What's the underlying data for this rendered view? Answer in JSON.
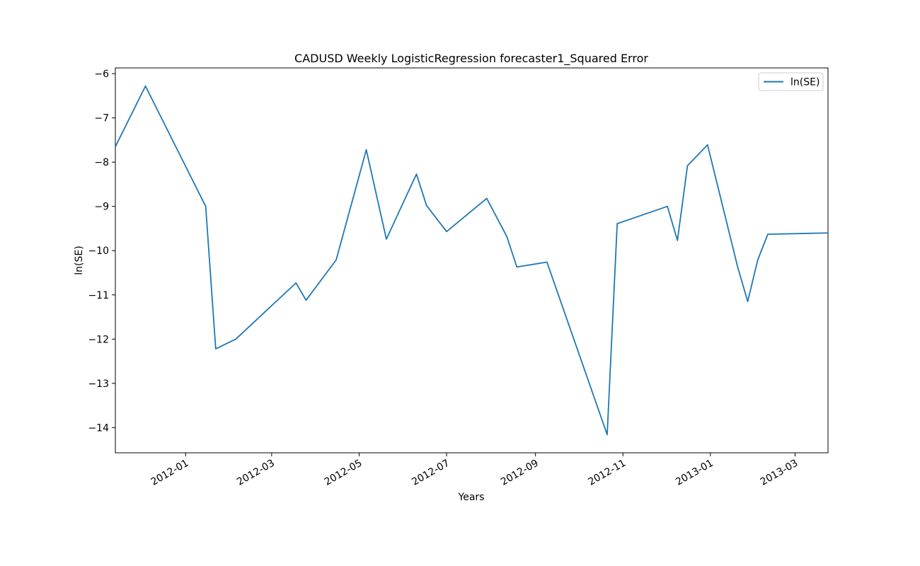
{
  "chart_data": {
    "type": "line",
    "title": "CADUSD Weekly LogisticRegression forecaster1_Squared Error",
    "xlabel": "Years",
    "ylabel": "ln(SE)",
    "xlim": [
      "2011-11-13",
      "2013-03-24"
    ],
    "ylim": [
      -14.57,
      -5.87
    ],
    "x_ticks": [
      "2012-01-01",
      "2012-03-01",
      "2012-05-01",
      "2012-07-01",
      "2012-09-01",
      "2012-11-01",
      "2013-01-01",
      "2013-03-01"
    ],
    "x_tick_labels": [
      "2012-01",
      "2012-03",
      "2012-05",
      "2012-07",
      "2012-09",
      "2012-11",
      "2013-01",
      "2013-03"
    ],
    "y_ticks": [
      -6,
      -7,
      -8,
      -9,
      -10,
      -11,
      -12,
      -13,
      -14
    ],
    "y_tick_labels": [
      "−6",
      "−7",
      "−8",
      "−9",
      "−10",
      "−11",
      "−12",
      "−13",
      "−14"
    ],
    "grid": false,
    "legend_position": "top-right",
    "series": [
      {
        "name": "ln(SE)",
        "color": "#1f77b4",
        "points": [
          {
            "x": "2011-11-13",
            "y": -7.65
          },
          {
            "x": "2011-12-04",
            "y": -6.28
          },
          {
            "x": "2012-01-15",
            "y": -9.0
          },
          {
            "x": "2012-01-22",
            "y": -12.22
          },
          {
            "x": "2012-02-05",
            "y": -12.0
          },
          {
            "x": "2012-03-18",
            "y": -10.73
          },
          {
            "x": "2012-03-25",
            "y": -11.12
          },
          {
            "x": "2012-04-15",
            "y": -10.21
          },
          {
            "x": "2012-05-06",
            "y": -7.72
          },
          {
            "x": "2012-05-20",
            "y": -9.74
          },
          {
            "x": "2012-06-10",
            "y": -8.27
          },
          {
            "x": "2012-06-17",
            "y": -8.98
          },
          {
            "x": "2012-07-01",
            "y": -9.57
          },
          {
            "x": "2012-07-29",
            "y": -8.82
          },
          {
            "x": "2012-08-12",
            "y": -9.68
          },
          {
            "x": "2012-08-19",
            "y": -10.37
          },
          {
            "x": "2012-09-09",
            "y": -10.26
          },
          {
            "x": "2012-10-21",
            "y": -14.16
          },
          {
            "x": "2012-10-28",
            "y": -9.39
          },
          {
            "x": "2012-12-02",
            "y": -9.0
          },
          {
            "x": "2012-12-09",
            "y": -9.77
          },
          {
            "x": "2012-12-16",
            "y": -8.08
          },
          {
            "x": "2012-12-30",
            "y": -7.61
          },
          {
            "x": "2013-01-20",
            "y": -10.37
          },
          {
            "x": "2013-01-27",
            "y": -11.15
          },
          {
            "x": "2013-02-03",
            "y": -10.21
          },
          {
            "x": "2013-02-10",
            "y": -9.63
          },
          {
            "x": "2013-03-24",
            "y": -9.6
          }
        ]
      }
    ]
  }
}
